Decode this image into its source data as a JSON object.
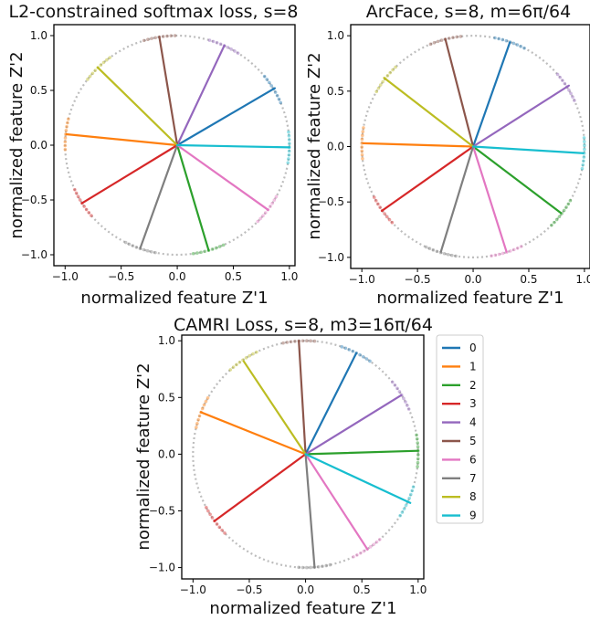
{
  "chart_data": [
    {
      "type": "line",
      "title": "L2-constrained softmax loss, s=8",
      "xlabel": "normalized feature Z'1",
      "ylabel": "normalized feature Z'2",
      "xlim": [
        -1.1,
        1.05
      ],
      "ylim": [
        -1.1,
        1.1
      ],
      "xticks": [
        "−1.0",
        "−0.5",
        "0.0",
        "0.5",
        "1.0"
      ],
      "yticks": [
        "−1.0",
        "−0.5",
        "0.0",
        "0.5",
        "1.0"
      ],
      "grid": false,
      "series": [
        {
          "name": "0",
          "x": [
            0,
            0.87
          ],
          "y": [
            0,
            0.52
          ]
        },
        {
          "name": "1",
          "x": [
            0,
            -0.99
          ],
          "y": [
            0,
            0.1
          ]
        },
        {
          "name": "2",
          "x": [
            0,
            0.28
          ],
          "y": [
            0,
            -0.96
          ]
        },
        {
          "name": "3",
          "x": [
            0,
            -0.85
          ],
          "y": [
            0,
            -0.53
          ]
        },
        {
          "name": "4",
          "x": [
            0,
            0.42
          ],
          "y": [
            0,
            0.91
          ]
        },
        {
          "name": "5",
          "x": [
            0,
            -0.16
          ],
          "y": [
            0,
            0.99
          ]
        },
        {
          "name": "6",
          "x": [
            0,
            0.81
          ],
          "y": [
            0,
            -0.59
          ]
        },
        {
          "name": "7",
          "x": [
            0,
            -0.33
          ],
          "y": [
            0,
            -0.94
          ]
        },
        {
          "name": "8",
          "x": [
            0,
            -0.71
          ],
          "y": [
            0,
            0.71
          ]
        },
        {
          "name": "9",
          "x": [
            0,
            1.0
          ],
          "y": [
            0,
            -0.02
          ]
        }
      ]
    },
    {
      "type": "line",
      "title": "ArcFace, s=8, m=6π/64",
      "xlabel": "normalized feature Z'1",
      "ylabel": "normalized feature Z'2",
      "xlim": [
        -1.1,
        1.05
      ],
      "ylim": [
        -1.1,
        1.1
      ],
      "xticks": [
        "−1.0",
        "−0.5",
        "0.0",
        "0.5",
        "1.0"
      ],
      "yticks": [
        "−1.0",
        "−0.5",
        "0.0",
        "0.5",
        "1.0"
      ],
      "grid": false,
      "series": [
        {
          "name": "0",
          "x": [
            0,
            0.33
          ],
          "y": [
            0,
            0.94
          ]
        },
        {
          "name": "1",
          "x": [
            0,
            -0.99
          ],
          "y": [
            0,
            0.03
          ]
        },
        {
          "name": "2",
          "x": [
            0,
            0.79
          ],
          "y": [
            0,
            -0.6
          ]
        },
        {
          "name": "3",
          "x": [
            0,
            -0.82
          ],
          "y": [
            0,
            -0.58
          ]
        },
        {
          "name": "4",
          "x": [
            0,
            0.86
          ],
          "y": [
            0,
            0.55
          ]
        },
        {
          "name": "5",
          "x": [
            0,
            -0.25
          ],
          "y": [
            0,
            0.97
          ]
        },
        {
          "name": "6",
          "x": [
            0,
            0.3
          ],
          "y": [
            0,
            -0.95
          ]
        },
        {
          "name": "7",
          "x": [
            0,
            -0.29
          ],
          "y": [
            0,
            -0.95
          ]
        },
        {
          "name": "8",
          "x": [
            0,
            -0.8
          ],
          "y": [
            0,
            0.62
          ]
        },
        {
          "name": "9",
          "x": [
            0,
            0.99
          ],
          "y": [
            0,
            -0.06
          ]
        }
      ]
    },
    {
      "type": "line",
      "title": "CAMRI Loss, s=8, m3=16π/64",
      "xlabel": "normalized feature Z'1",
      "ylabel": "normalized feature Z'2",
      "xlim": [
        -1.1,
        1.05
      ],
      "ylim": [
        -1.1,
        1.05
      ],
      "xticks": [
        "−1.0",
        "−0.5",
        "0.0",
        "0.5",
        "1.0"
      ],
      "yticks": [
        "−1.0",
        "−0.5",
        "0.0",
        "0.5",
        "1.0"
      ],
      "grid": false,
      "legend": "right",
      "series": [
        {
          "name": "0",
          "x": [
            0,
            0.45
          ],
          "y": [
            0,
            0.89
          ]
        },
        {
          "name": "1",
          "x": [
            0,
            -0.93
          ],
          "y": [
            0,
            0.37
          ]
        },
        {
          "name": "2",
          "x": [
            0,
            1.0
          ],
          "y": [
            0,
            0.03
          ]
        },
        {
          "name": "3",
          "x": [
            0,
            -0.81
          ],
          "y": [
            0,
            -0.59
          ]
        },
        {
          "name": "4",
          "x": [
            0,
            0.85
          ],
          "y": [
            0,
            0.52
          ]
        },
        {
          "name": "5",
          "x": [
            0,
            -0.06
          ],
          "y": [
            0,
            1.0
          ]
        },
        {
          "name": "6",
          "x": [
            0,
            0.55
          ],
          "y": [
            0,
            -0.84
          ]
        },
        {
          "name": "7",
          "x": [
            0,
            0.08
          ],
          "y": [
            0,
            -1.0
          ]
        },
        {
          "name": "8",
          "x": [
            0,
            -0.55
          ],
          "y": [
            0,
            0.82
          ]
        },
        {
          "name": "9",
          "x": [
            0,
            0.93
          ],
          "y": [
            0,
            -0.43
          ]
        }
      ]
    }
  ],
  "colors": [
    "#1f77b4",
    "#ff7f0e",
    "#2ca02c",
    "#d62728",
    "#9467bd",
    "#8c564b",
    "#e377c2",
    "#7f7f7f",
    "#bcbd22",
    "#17becf"
  ]
}
